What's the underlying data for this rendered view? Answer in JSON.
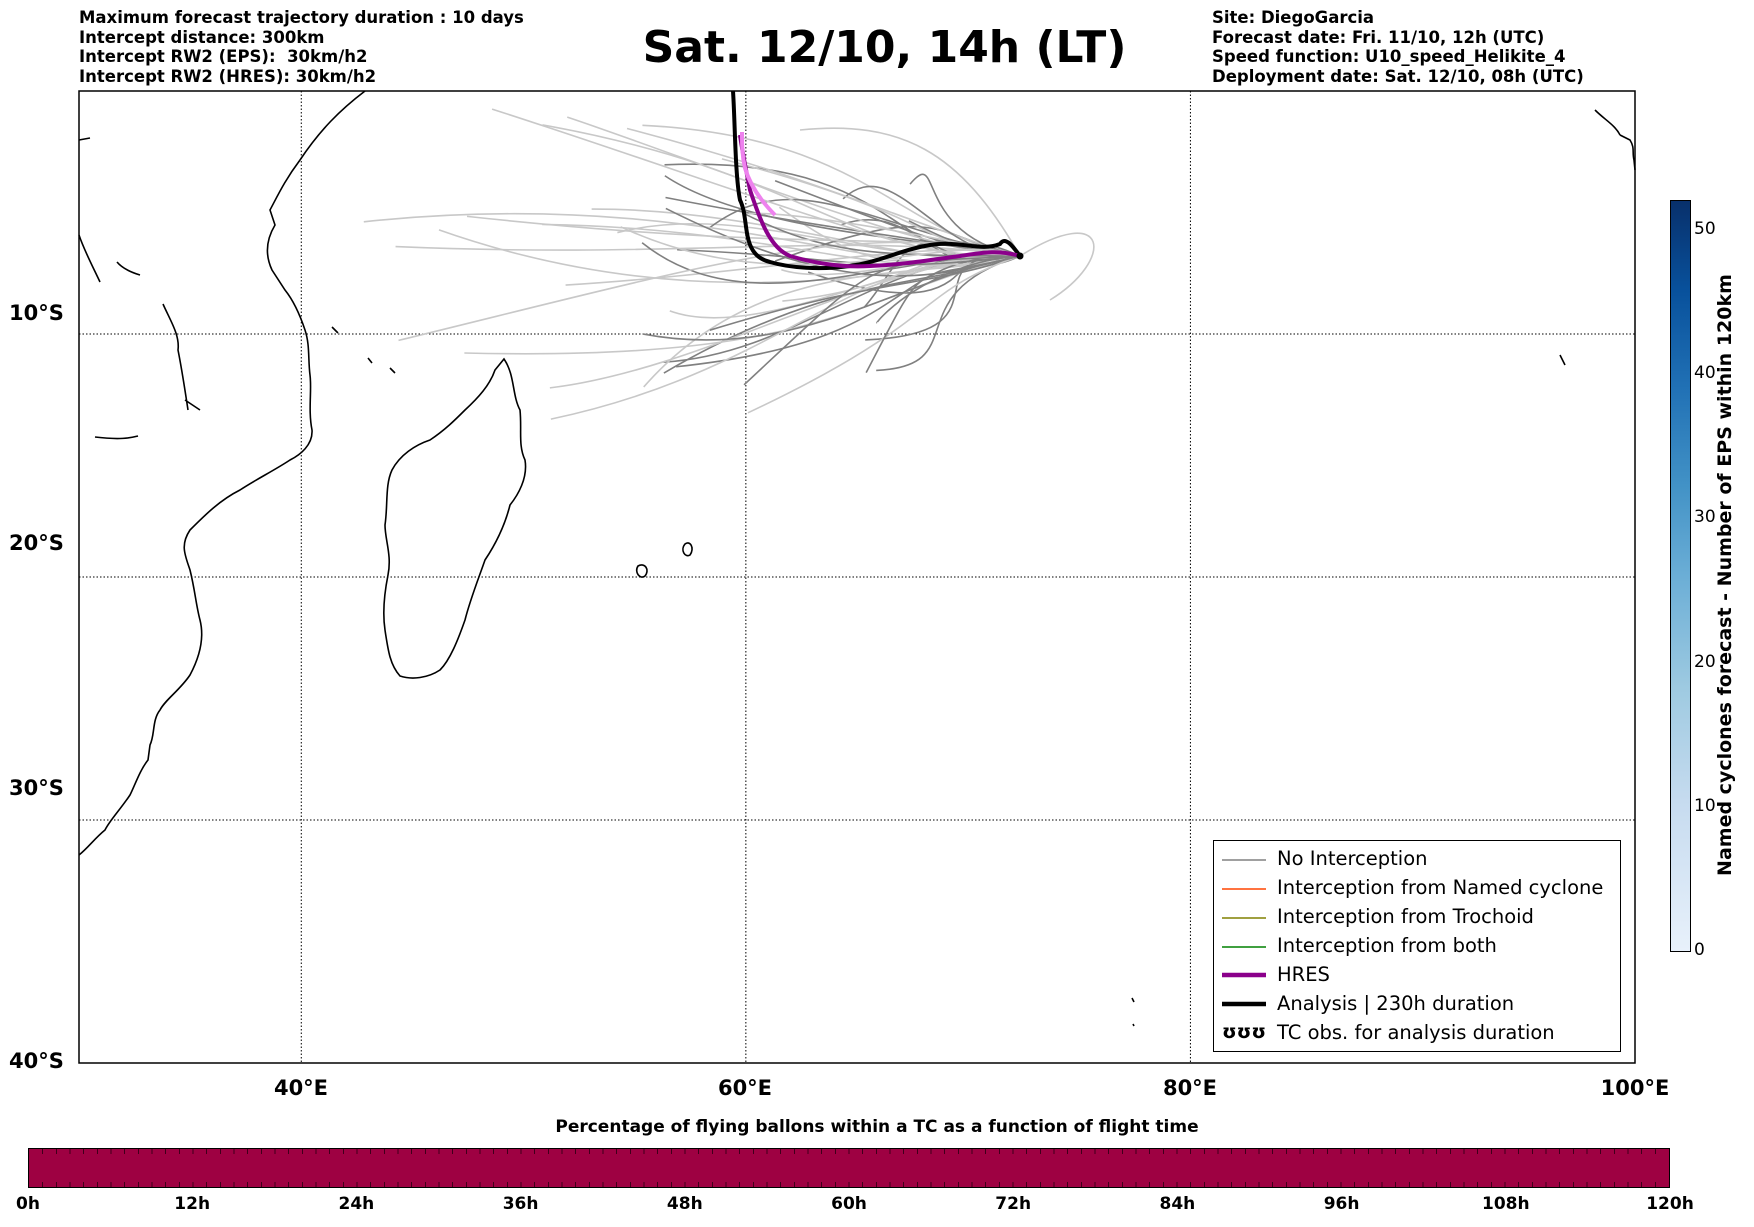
{
  "header_left": [
    "Maximum forecast trajectory duration : 10 days",
    "Intercept distance: 300km",
    "Intercept RW2 (EPS):  30km/h2",
    "Intercept RW2 (HRES): 30km/h2"
  ],
  "header_right": [
    "Site: DiegoGarcia",
    "Forecast date: Fri. 11/10, 12h (UTC)",
    "Speed function: U10_speed_Helikite_4",
    "Deployment date: Sat. 12/10, 08h (UTC)"
  ],
  "title": "Sat. 12/10, 14h (LT)",
  "map": {
    "lon_range": [
      30,
      100
    ],
    "lat_range": [
      -40,
      0
    ],
    "lat_labels": [
      "10°S",
      "20°S",
      "30°S",
      "40°S"
    ],
    "lon_labels": [
      "40°E",
      "60°E",
      "80°E",
      "100°E"
    ],
    "grid": "dotted",
    "site": "DiegoGarcia",
    "colors": {
      "no_interception": "#808080",
      "eps_faded": "#c8c8c8",
      "hres": "#8b008b",
      "hres_light": "#ee82ee",
      "analysis": "#000000"
    }
  },
  "legend": {
    "items": [
      {
        "label": "No Interception",
        "color": "#808080",
        "style": "thin"
      },
      {
        "label": "Interception from Named cyclone",
        "color": "#ff4500",
        "style": "thin"
      },
      {
        "label": "Interception from Trochoid",
        "color": "#808000",
        "style": "thin"
      },
      {
        "label": "Interception from both",
        "color": "#008000",
        "style": "thin"
      },
      {
        "label": "HRES",
        "color": "#8b008b",
        "style": "thick"
      },
      {
        "label": "Analysis | 230h duration",
        "color": "#000000",
        "style": "thick"
      },
      {
        "label": "TC obs. for analysis duration",
        "color": "#000000",
        "style": "symbol",
        "symbol": "ʊʊʊ"
      }
    ]
  },
  "colorbar_vertical": {
    "label": "Named cyclones forecast - Number of EPS within 120km",
    "ticks": [
      "0",
      "10",
      "20",
      "30",
      "40",
      "50"
    ],
    "max": 52
  },
  "colorbar_horizontal": {
    "title": "Percentage of flying ballons within a TC as a function of flight time",
    "ticks": [
      "0h",
      "12h",
      "24h",
      "36h",
      "48h",
      "60h",
      "72h",
      "84h",
      "96h",
      "108h",
      "120h"
    ],
    "fill_color": "#9e0142"
  }
}
